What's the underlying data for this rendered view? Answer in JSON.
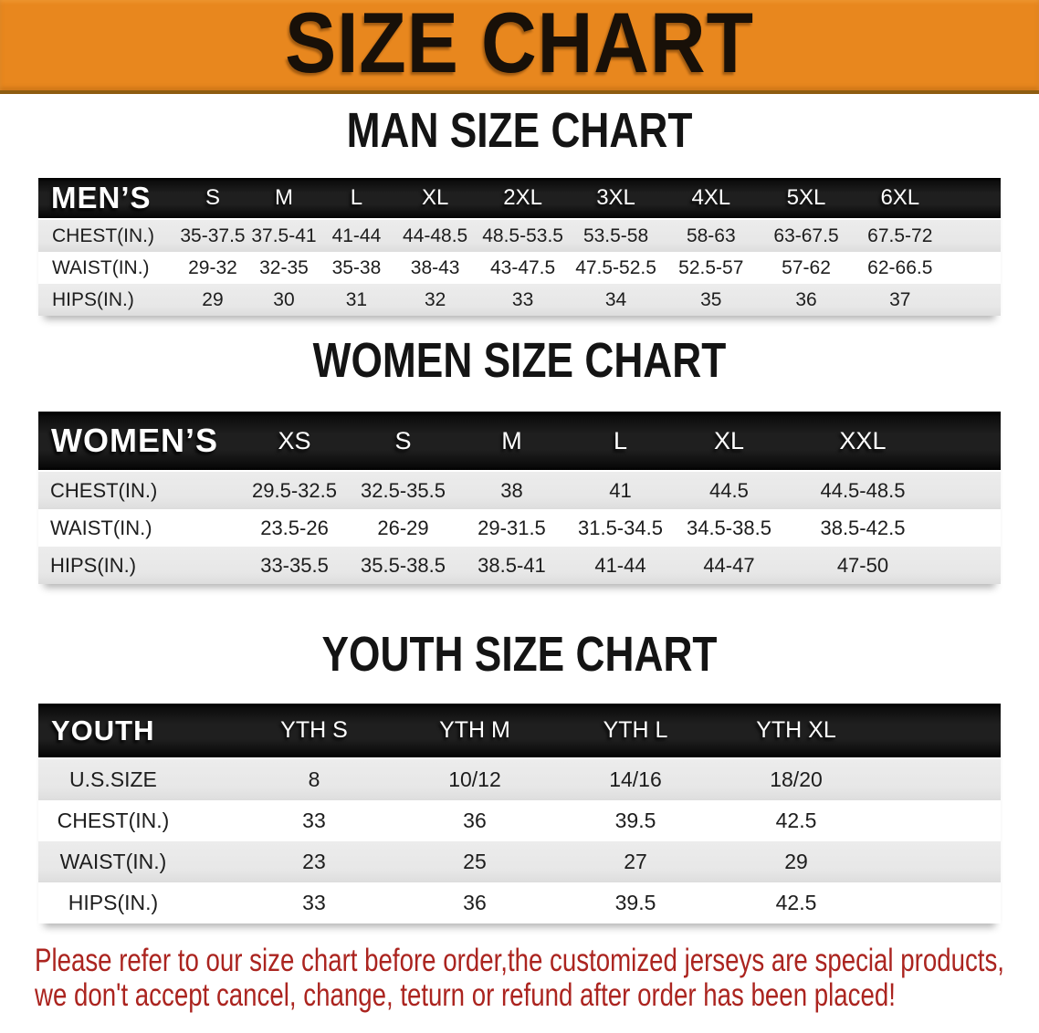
{
  "banner": {
    "title": "SIZE CHART"
  },
  "sections": {
    "men": {
      "heading": "MAN SIZE CHART",
      "table": {
        "label": "MEN’S",
        "columns": [
          "S",
          "M",
          "L",
          "XL",
          "2XL",
          "3XL",
          "4XL",
          "5XL",
          "6XL"
        ],
        "rows": [
          {
            "label": "CHEST(IN.)",
            "values": [
              "35-37.5",
              "37.5-41",
              "41-44",
              "44-48.5",
              "48.5-53.5",
              "53.5-58",
              "58-63",
              "63-67.5",
              "67.5-72"
            ]
          },
          {
            "label": "WAIST(IN.)",
            "values": [
              "29-32",
              "32-35",
              "35-38",
              "38-43",
              "43-47.5",
              "47.5-52.5",
              "52.5-57",
              "57-62",
              "62-66.5"
            ]
          },
          {
            "label": "HIPS(IN.)",
            "values": [
              "29",
              "30",
              "31",
              "32",
              "33",
              "34",
              "35",
              "36",
              "37"
            ]
          }
        ]
      }
    },
    "women": {
      "heading": "WOMEN SIZE CHART",
      "table": {
        "label": "WOMEN’S",
        "columns": [
          "XS",
          "S",
          "M",
          "L",
          "XL",
          "XXL"
        ],
        "rows": [
          {
            "label": "CHEST(IN.)",
            "values": [
              "29.5-32.5",
              "32.5-35.5",
              "38",
              "41",
              "44.5",
              "44.5-48.5"
            ]
          },
          {
            "label": "WAIST(IN.)",
            "values": [
              "23.5-26",
              "26-29",
              "29-31.5",
              "31.5-34.5",
              "34.5-38.5",
              "38.5-42.5"
            ]
          },
          {
            "label": "HIPS(IN.)",
            "values": [
              "33-35.5",
              "35.5-38.5",
              "38.5-41",
              "41-44",
              "44-47",
              "47-50"
            ]
          }
        ]
      }
    },
    "youth": {
      "heading": "YOUTH SIZE CHART",
      "table": {
        "label": "YOUTH",
        "columns": [
          "YTH S",
          "YTH M",
          "YTH L",
          "YTH XL"
        ],
        "rows": [
          {
            "label": "U.S.SIZE",
            "values": [
              "8",
              "10/12",
              "14/16",
              "18/20"
            ]
          },
          {
            "label": "CHEST(IN.)",
            "values": [
              "33",
              "36",
              "39.5",
              "42.5"
            ]
          },
          {
            "label": "WAIST(IN.)",
            "values": [
              "23",
              "25",
              "27",
              "29"
            ]
          },
          {
            "label": "HIPS(IN.)",
            "values": [
              "33",
              "36",
              "39.5",
              "42.5"
            ]
          }
        ]
      }
    }
  },
  "notice": {
    "lines": [
      "Please refer to our size chart before order,the customized jerseys are special products,",
      "we don't accept cancel, change, teturn or refund after order has been placed!"
    ]
  },
  "colors": {
    "banner_bg": "#e8871e",
    "banner_text": "#181008",
    "heading_color": "#141414",
    "header_band": "#1c1c1c",
    "row_gray": "#e8e8e8",
    "notice_color": "#ab241f"
  }
}
